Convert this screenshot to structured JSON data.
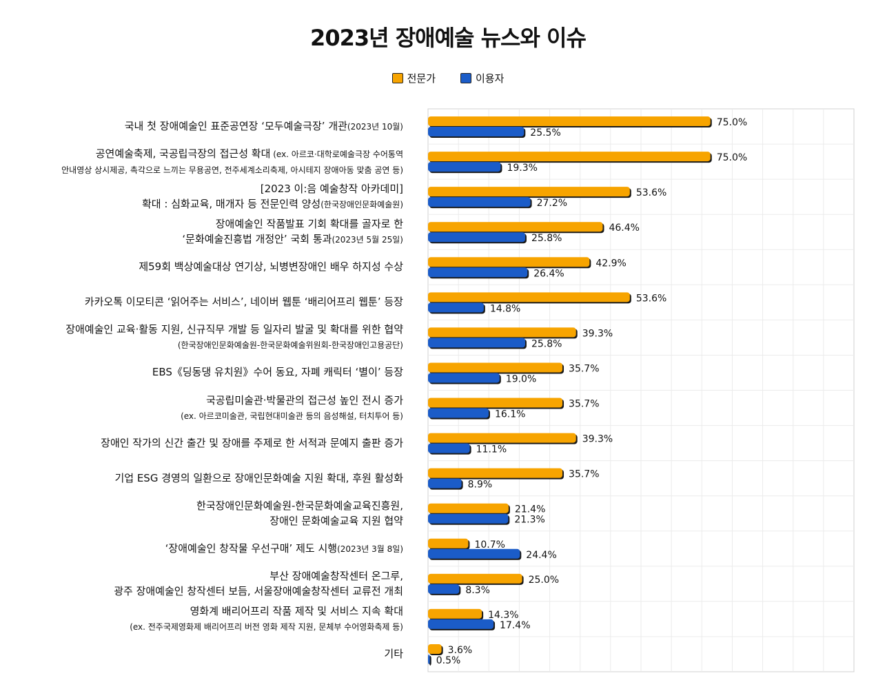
{
  "chart_data": {
    "type": "bar",
    "orientation": "horizontal",
    "title": "2023년 장애예술 뉴스와 이슈",
    "xlim": [
      0,
      100
    ],
    "grid": true,
    "legend_position": "top-center",
    "value_suffix": "%",
    "series": [
      {
        "name": "전문가",
        "color": "#F7A400",
        "values": [
          75.0,
          75.0,
          53.6,
          46.4,
          42.9,
          53.6,
          39.3,
          35.7,
          35.7,
          39.3,
          35.7,
          21.4,
          10.7,
          25.0,
          14.3,
          3.6
        ]
      },
      {
        "name": "이용자",
        "color": "#1B5CC8",
        "values": [
          25.5,
          19.3,
          27.2,
          25.8,
          26.4,
          14.8,
          25.8,
          19.0,
          16.1,
          11.1,
          8.9,
          21.3,
          24.4,
          8.3,
          17.4,
          0.5
        ]
      }
    ],
    "categories": [
      {
        "line1": "국내 첫 장애예술인 표준공연장 ‘모두예술극장’ 개관",
        "line1_small": "(2023년 10월)",
        "line2": "",
        "line2_small": ""
      },
      {
        "line1": "공연예술축제, 국공립극장의 접근성 확대",
        "line1_small": " (ex. 아르코·대학로예술극장 수어통역",
        "line2": "",
        "line2_small": "안내영상 상시제공, 촉각으로 느끼는 무용공연, 전주세계소리축제, 아시테지 장애아동 맞춤 공연 등)"
      },
      {
        "line1": "[2023 이:음 예술창작 아카데미]",
        "line1_small": "",
        "line2": "확대 : 심화교육, 매개자 등 전문인력 양성",
        "line2_small": "(한국장애인문화예술원)"
      },
      {
        "line1": "장애예술인 작품발표 기회 확대를 골자로 한",
        "line1_small": "",
        "line2": "‘문화예술진흥법 개정안’ 국회 통과",
        "line2_small": "(2023년 5월 25일)"
      },
      {
        "line1": "제59회 백상예술대상 연기상, 뇌병변장애인 배우 하지성 수상",
        "line1_small": "",
        "line2": "",
        "line2_small": ""
      },
      {
        "line1": "카카오톡 이모티콘 ‘읽어주는 서비스’, 네이버 웹툰 ‘배리어프리 웹툰’ 등장",
        "line1_small": "",
        "line2": "",
        "line2_small": ""
      },
      {
        "line1": "장애예술인 교육·활동 지원, 신규직무 개발 등 일자리 발굴 및 확대를 위한 협약",
        "line1_small": "",
        "line2": "",
        "line2_small": "(한국장애인문화예술원-한국문화예술위원회-한국장애인고용공단)"
      },
      {
        "line1": "EBS《딩동댕 유치원》수어 동요, 자폐 캐릭터 ‘별이’ 등장",
        "line1_small": "",
        "line2": "",
        "line2_small": ""
      },
      {
        "line1": "국공립미술관·박물관의 접근성 높인 전시 증가",
        "line1_small": "",
        "line2": "",
        "line2_small": "(ex. 아르코미술관, 국립현대미술관 등의 음성해설, 터치투어 등)"
      },
      {
        "line1": "장애인 작가의 신간 출간 및 장애를 주제로 한 서적과 문예지 출판 증가",
        "line1_small": "",
        "line2": "",
        "line2_small": ""
      },
      {
        "line1": "기업 ESG 경영의 일환으로 장애인문화예술 지원 확대, 후원 활성화",
        "line1_small": "",
        "line2": "",
        "line2_small": ""
      },
      {
        "line1": "한국장애인문화예술원-한국문화예술교육진흥원,",
        "line1_small": "",
        "line2": "장애인 문화예술교육 지원 협약",
        "line2_small": ""
      },
      {
        "line1": "‘장애예술인 창작물 우선구매’ 제도 시행",
        "line1_small": "(2023년 3월 8일)",
        "line2": "",
        "line2_small": ""
      },
      {
        "line1": "부산 장애예술창작센터 온그루,",
        "line1_small": "",
        "line2": "광주 장애예술인 창작센터 보듬, 서울장애예술창작센터 교류전 개최",
        "line2_small": ""
      },
      {
        "line1": "영화계 배리어프리 작품 제작 및 서비스 지속 확대",
        "line1_small": "",
        "line2": "",
        "line2_small": "(ex. 전주국제영화제 배리어프리 버전 영화 제작 지원, 문체부 수어영화축제 등)"
      },
      {
        "line1": "기타",
        "line1_small": "",
        "line2": "",
        "line2_small": ""
      }
    ]
  }
}
